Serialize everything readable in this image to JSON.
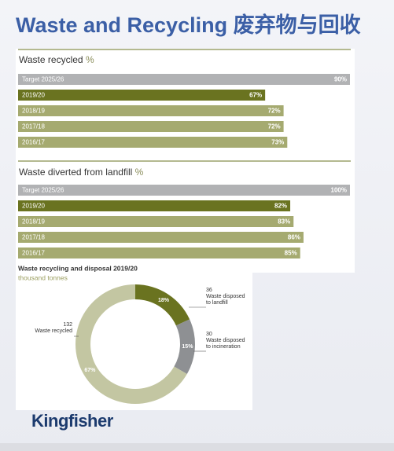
{
  "header": {
    "title": "Waste and Recycling 废弃物与回收"
  },
  "chart_data": [
    {
      "type": "hbar",
      "title": "Waste recycled",
      "unit": "%",
      "categories": [
        "Target 2025/26",
        "2019/20",
        "2018/19",
        "2017/18",
        "2016/17"
      ],
      "values": [
        90,
        67,
        72,
        72,
        73
      ],
      "value_labels": [
        "90%",
        "67%",
        "72%",
        "72%",
        "73%"
      ],
      "colors": [
        "#b1b2b4",
        "#6a7320",
        "#a5aa70",
        "#a5aa70",
        "#a5aa70"
      ],
      "xlim": [
        0,
        90
      ]
    },
    {
      "type": "hbar",
      "title": "Waste diverted from landfill",
      "unit": "%",
      "categories": [
        "Target 2025/26",
        "2019/20",
        "2018/19",
        "2017/18",
        "2016/17"
      ],
      "values": [
        100,
        82,
        83,
        86,
        85
      ],
      "value_labels": [
        "100%",
        "82%",
        "83%",
        "86%",
        "85%"
      ],
      "colors": [
        "#b1b2b4",
        "#6a7320",
        "#a5aa70",
        "#a5aa70",
        "#a5aa70"
      ],
      "xlim": [
        0,
        100
      ]
    },
    {
      "type": "donut",
      "title": "Waste recycling and disposal 2019/20",
      "subtitle": "thousand tonnes",
      "categories": [
        "Waste disposed to landfill",
        "Waste disposed to incineration",
        "Waste recycled"
      ],
      "values": [
        36,
        30,
        132
      ],
      "shares": [
        18,
        15,
        67
      ],
      "share_labels": [
        "18%",
        "15%",
        "67%"
      ],
      "colors": [
        "#6a7320",
        "#8e9093",
        "#c3c6a2"
      ]
    }
  ],
  "logo": {
    "text": "Kingfisher"
  }
}
